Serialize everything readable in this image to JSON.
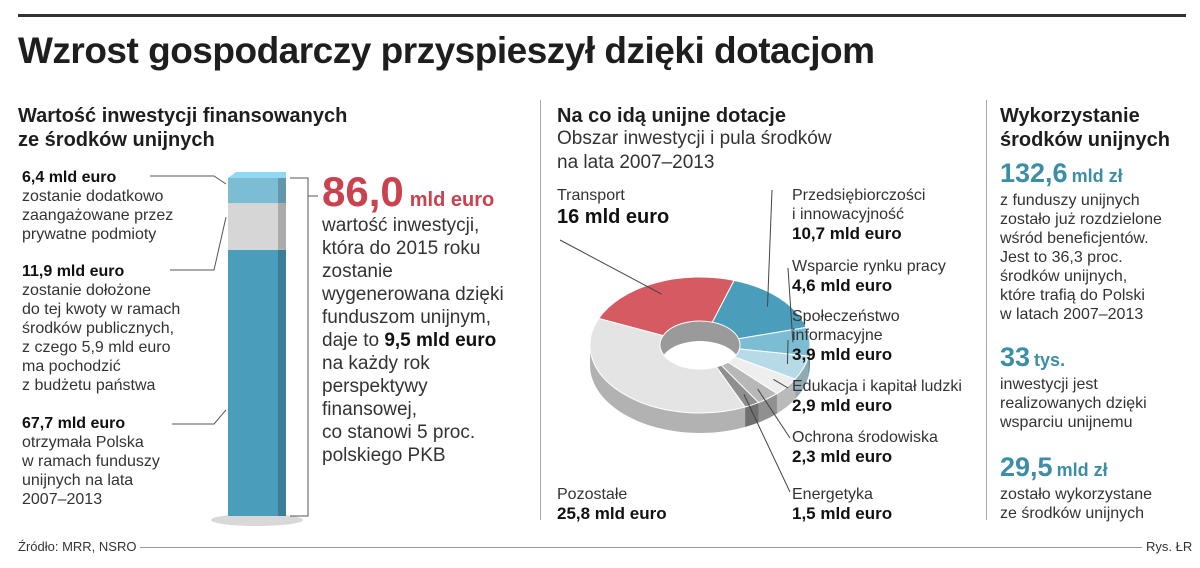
{
  "title": "Wzrost gospodarczy przyspieszył dzięki dotacjom",
  "left": {
    "title_line1": "Wartość inwestycji finansowanych",
    "title_line2": "ze środków unijnych",
    "annotations": [
      {
        "value": "6,4 mld euro",
        "lines": [
          "zostanie dodatkowo",
          "zaangażowane przez",
          "prywatne podmioty"
        ]
      },
      {
        "value": "11,9 mld euro",
        "lines": [
          "zostanie dołożone",
          "do tej kwoty w ramach",
          "środków publicznych,",
          "z czego 5,9 mld euro",
          "ma pochodzić",
          "z budżetu państwa"
        ]
      },
      {
        "value": "67,7 mld euro",
        "lines": [
          "otrzymała Polska",
          "w ramach funduszy",
          "unijnych na lata",
          "2007–2013"
        ]
      }
    ],
    "big_number": "86,0",
    "big_unit": "mld euro",
    "desc_lines": [
      "wartość inwestycji,",
      "która do 2015 roku",
      "zostanie",
      "wygenerowana dzięki",
      "funduszom unijnym,"
    ],
    "desc_pre": "daje to ",
    "desc_bold": "9,5 mld euro",
    "desc_lines2": [
      "na każdy rok",
      "perspektywy",
      "finansowej,",
      "co stanowi 5 proc.",
      "polskiego PKB"
    ],
    "colors": {
      "blue": "#4a9dbb",
      "gray": "#d6d6d6",
      "light_blue": "#7cbdd4"
    }
  },
  "middle": {
    "title": "Na co idą unijne dotacje",
    "subtitle_line1": "Obszar inwestycji i pula środków",
    "subtitle_line2": "na lata 2007–2013"
  },
  "right": {
    "title_line1": "Wykorzystanie",
    "title_line2": "środków unijnych",
    "stats": [
      {
        "num": "132,6",
        "unit": "mld zł",
        "lines": [
          "z funduszy unijnych",
          "zostało już rozdzielone",
          "wśród beneficjentów.",
          "Jest to 36,3 proc.",
          "środków unijnych,",
          "które trafią do Polski",
          "w latach 2007–2013"
        ]
      },
      {
        "num": "33",
        "unit": "tys.",
        "lines": [
          "inwestycji jest",
          "realizowanych dzięki",
          "wsparciu unijnemu"
        ]
      },
      {
        "num": "29,5",
        "unit": "mld zł",
        "lines": [
          "zostało wykorzystane",
          "ze środków unijnych"
        ]
      }
    ],
    "color": "#3c8ea8"
  },
  "footer": {
    "source": "Źródło: MRR, NSRO",
    "credit": "Rys. ŁR"
  },
  "chart_data": [
    {
      "type": "bar",
      "stacked": true,
      "categories": [
        ""
      ],
      "series": [
        {
          "name": "67,7 mld euro",
          "values": [
            67.7
          ]
        },
        {
          "name": "11,9 mld euro",
          "values": [
            11.9
          ]
        },
        {
          "name": "6,4 mld euro",
          "values": [
            6.4
          ]
        }
      ],
      "total": 86.0
    },
    {
      "type": "pie",
      "style": "donut-3d",
      "labels": [
        "Transport",
        "Przedsiębiorczości i innowacyjność",
        "Wsparcie rynku pracy",
        "Społeczeństwo informacyjne",
        "Edukacja i kapitał ludzki",
        "Ochrona środowiska",
        "Energetyka",
        "Pozostałe"
      ],
      "values": [
        16,
        10.7,
        4.6,
        3.9,
        2.9,
        2.3,
        1.5,
        25.8
      ],
      "value_labels": [
        "16 mld euro",
        "10,7 mld euro",
        "4,6 mld euro",
        "3,9 mld euro",
        "2,9 mld euro",
        "2,3 mld euro",
        "1,5 mld euro",
        "25,8 mld euro"
      ],
      "label_lines": [
        [
          "Transport"
        ],
        [
          "Przedsiębiorczości",
          "i innowacyjność"
        ],
        [
          "Wsparcie rynku pracy"
        ],
        [
          "Społeczeństwo",
          "informacyjne"
        ],
        [
          "Edukacja i kapitał ludzki"
        ],
        [
          "Ochrona środowiska"
        ],
        [
          "Energetyka"
        ],
        [
          "Pozostałe"
        ]
      ],
      "colors": [
        "#d65a61",
        "#4a9dbb",
        "#7cbdd4",
        "#b7dbe6",
        "#eeeeee",
        "#b8b8b8",
        "#8f8f8f",
        "#e4e4e4"
      ]
    }
  ]
}
